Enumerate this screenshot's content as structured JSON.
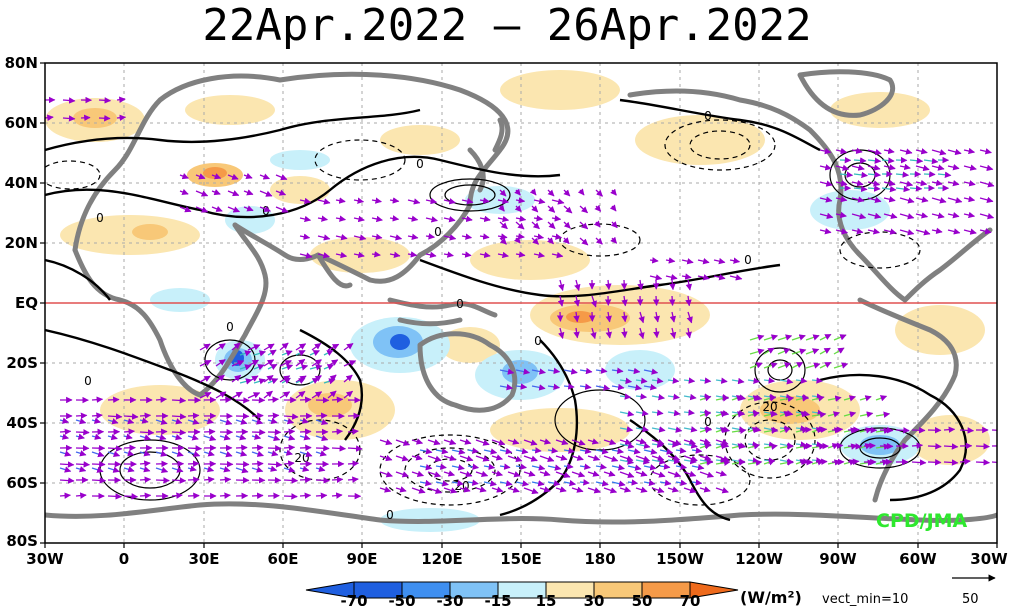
{
  "title": "22Apr.2022 – 26Apr.2022",
  "lat_labels": [
    "80N",
    "60N",
    "40N",
    "20N",
    "EQ",
    "20S",
    "40S",
    "60S",
    "80S"
  ],
  "lon_labels": [
    "30W",
    "0",
    "30E",
    "60E",
    "90E",
    "120E",
    "150E",
    "180",
    "150W",
    "120W",
    "90W",
    "60W",
    "30W"
  ],
  "contour_labels": [
    "0",
    "0",
    "0",
    "0",
    "0",
    "0",
    "0",
    "0",
    "0",
    "0",
    "0",
    "0",
    "20",
    "20",
    "20"
  ],
  "colorbar": {
    "ticks": [
      "-70",
      "-50",
      "-30",
      "-15",
      "15",
      "30",
      "50",
      "70"
    ],
    "colors": [
      "#1f5fe0",
      "#3f8ff0",
      "#7fc2f6",
      "#c8f0fa",
      "#ffffff",
      "#fbe6b0",
      "#f8c878",
      "#f59a48",
      "#ee6a1c"
    ],
    "units": "(W/m²)",
    "vect_min": "vect_min=10"
  },
  "reference_vector": "50",
  "credit": "CPD/JMA",
  "equator_color": "#e05050",
  "vector_color": "#9900cc"
}
